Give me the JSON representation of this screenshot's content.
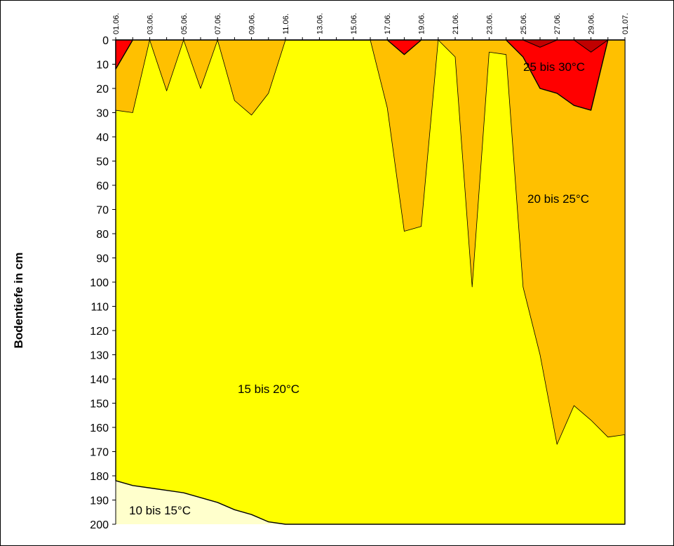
{
  "chart_data": {
    "type": "area",
    "ylabel": "Bodentiefe in cm",
    "y_ticks": [
      "0",
      "10",
      "20",
      "30",
      "40",
      "50",
      "60",
      "70",
      "80",
      "90",
      "100",
      "110",
      "120",
      "130",
      "140",
      "150",
      "160",
      "170",
      "180",
      "190",
      "200"
    ],
    "ylim": [
      0,
      200
    ],
    "y_reversed": true,
    "x_ticks": [
      "01.06.",
      "03.06.",
      "05.06.",
      "07.06.",
      "09.06.",
      "11.06.",
      "13.06.",
      "15.06.",
      "17.06.",
      "19.06.",
      "21.06.",
      "23.06.",
      "25.06.",
      "27.06.",
      "29.06.",
      "01.07."
    ],
    "x": [
      "01.06.",
      "02.06.",
      "03.06.",
      "04.06.",
      "05.06.",
      "06.06.",
      "07.06.",
      "08.06.",
      "09.06.",
      "10.06.",
      "11.06.",
      "12.06.",
      "13.06.",
      "14.06.",
      "15.06.",
      "16.06.",
      "17.06.",
      "18.06.",
      "19.06.",
      "20.06.",
      "21.06.",
      "22.06.",
      "23.06.",
      "24.06.",
      "25.06.",
      "26.06.",
      "27.06.",
      "28.06.",
      "29.06.",
      "30.06.",
      "01.07."
    ],
    "series": [
      {
        "name": "25 bis 30°C",
        "color": "#ff0000",
        "depth_cm": [
          12,
          0,
          0,
          0,
          0,
          0,
          0,
          0,
          0,
          0,
          0,
          0,
          0,
          0,
          0,
          0,
          0,
          6,
          0,
          0,
          0,
          0,
          0,
          0,
          7,
          20,
          22,
          27,
          29,
          0,
          0
        ]
      },
      {
        "name": "20 bis 25°C",
        "color": "#ffc000",
        "depth_cm": [
          29,
          30,
          0,
          21,
          0,
          20,
          0,
          25,
          31,
          22,
          0,
          0,
          0,
          0,
          0,
          0,
          28,
          79,
          77,
          0,
          7,
          102,
          5,
          6,
          102,
          130,
          167,
          151,
          157,
          164,
          163
        ]
      },
      {
        "name": "15 bis 20°C",
        "color": "#ffff00",
        "depth_cm": [
          182,
          184,
          185,
          186,
          187,
          189,
          191,
          194,
          196,
          199,
          200,
          200,
          200,
          200,
          200,
          200,
          200,
          200,
          200,
          200,
          200,
          200,
          200,
          200,
          200,
          200,
          200,
          200,
          200,
          200,
          200
        ]
      },
      {
        "name": "10 bis 15°C",
        "color": "#ffffcc",
        "depth_cm": [
          200,
          200,
          200,
          200,
          200,
          200,
          200,
          200,
          200,
          200,
          200,
          200,
          200,
          200,
          200,
          200,
          200,
          200,
          200,
          200,
          200,
          200,
          200,
          200,
          200,
          200,
          200,
          200,
          200,
          200,
          200
        ]
      }
    ],
    "dark_red_patches": [
      {
        "color": "#c00000",
        "days": [
          "26.06.",
          "29.06."
        ],
        "max_depth_cm": [
          3,
          5
        ]
      }
    ],
    "labels": [
      {
        "text": "25 bis 30°C"
      },
      {
        "text": "20 bis 25°C"
      },
      {
        "text": "15 bis 20°C"
      },
      {
        "text": "10 bis 15°C"
      }
    ],
    "grid": false,
    "legend": "none"
  }
}
